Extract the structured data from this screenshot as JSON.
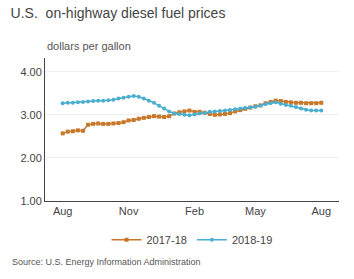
{
  "chart_data": {
    "type": "line",
    "title": "U.S.  on-highway diesel fuel prices",
    "subtitle": "dollars per gallon",
    "source": "Source: U.S. Energy Information Administration",
    "categories": [
      "Aug",
      null,
      null,
      null,
      null,
      null,
      null,
      null,
      null,
      null,
      null,
      null,
      null,
      "Nov",
      null,
      null,
      null,
      null,
      null,
      null,
      null,
      null,
      null,
      null,
      null,
      null,
      "Feb",
      null,
      null,
      null,
      null,
      null,
      null,
      null,
      null,
      null,
      null,
      null,
      "May",
      null,
      null,
      null,
      null,
      null,
      null,
      null,
      null,
      null,
      null,
      null,
      null,
      "Aug"
    ],
    "series": [
      {
        "name": "2017-18",
        "color": "#c8782a",
        "marker": "square",
        "values": [
          2.57,
          2.61,
          2.62,
          2.64,
          2.63,
          2.77,
          2.79,
          2.8,
          2.79,
          2.79,
          2.8,
          2.81,
          2.83,
          2.87,
          2.88,
          2.91,
          2.93,
          2.95,
          2.97,
          2.96,
          2.95,
          2.97,
          3.03,
          3.06,
          3.08,
          3.1,
          3.07,
          3.07,
          3.05,
          3.02,
          3.0,
          3.01,
          3.02,
          3.04,
          3.08,
          3.11,
          3.14,
          3.17,
          3.2,
          3.22,
          3.27,
          3.3,
          3.33,
          3.32,
          3.3,
          3.29,
          3.28,
          3.28,
          3.27,
          3.27,
          3.27,
          3.28
        ]
      },
      {
        "name": "2018-19",
        "color": "#4aaed0",
        "marker": "circle",
        "values": [
          3.27,
          3.28,
          3.28,
          3.29,
          3.3,
          3.31,
          3.32,
          3.33,
          3.33,
          3.34,
          3.35,
          3.38,
          3.4,
          3.42,
          3.44,
          3.42,
          3.38,
          3.33,
          3.28,
          3.21,
          3.15,
          3.08,
          3.03,
          3.02,
          3.0,
          2.99,
          3.01,
          3.03,
          3.05,
          3.07,
          3.08,
          3.09,
          3.1,
          3.11,
          3.13,
          3.15,
          3.16,
          3.17,
          3.19,
          3.22,
          3.25,
          3.27,
          3.29,
          3.26,
          3.23,
          3.21,
          3.18,
          3.15,
          3.12,
          3.1,
          3.1,
          3.1
        ]
      }
    ],
    "ylim": [
      1.0,
      4.32
    ],
    "yticks": [
      {
        "value": 1.0,
        "label": "1.00"
      },
      {
        "value": 2.0,
        "label": "2.00"
      },
      {
        "value": 3.0,
        "label": "3.00"
      },
      {
        "value": 4.0,
        "label": "4.00"
      }
    ],
    "grid": true,
    "legend": "bottom"
  }
}
